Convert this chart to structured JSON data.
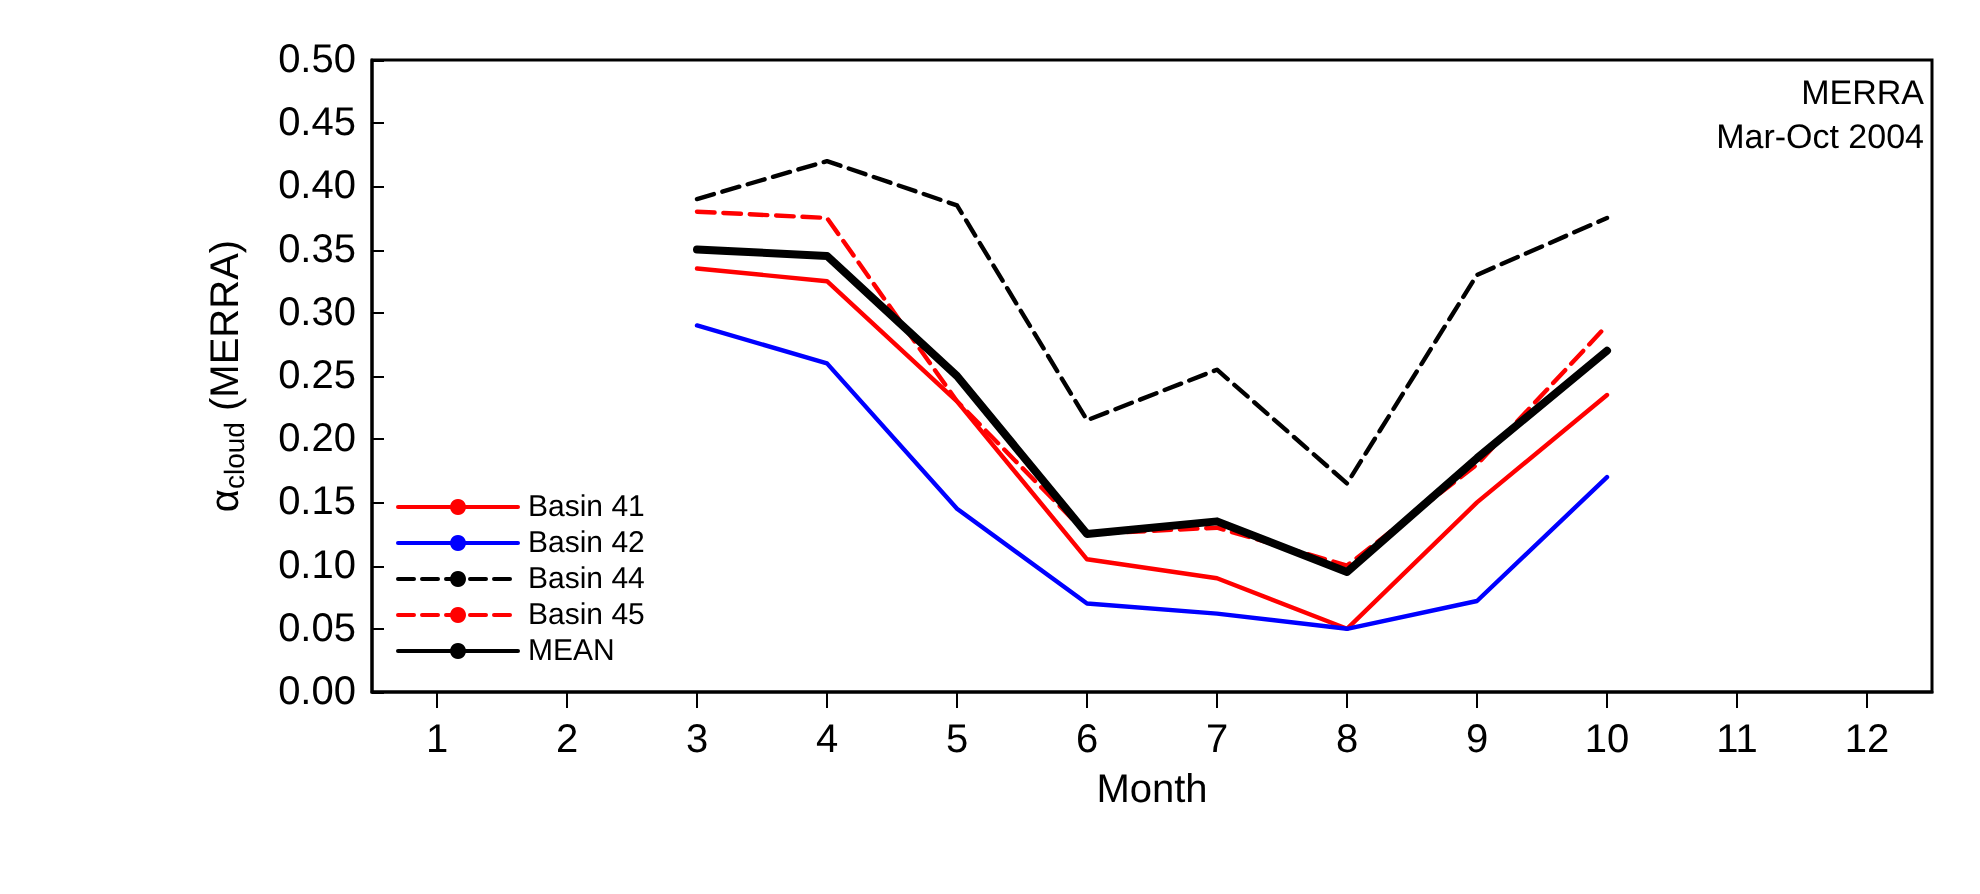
{
  "chart_data": {
    "type": "line",
    "xlabel": "Month",
    "ylabel": "α$_{cloud}$ (MERRA)",
    "annotations": [
      "MERRA",
      "Mar-Oct 2004"
    ],
    "x": [
      3,
      4,
      5,
      6,
      7,
      8,
      9,
      10
    ],
    "xlim": [
      0.5,
      12.5
    ],
    "xticks": [
      1,
      2,
      3,
      4,
      5,
      6,
      7,
      8,
      9,
      10,
      11,
      12
    ],
    "ylim": [
      0,
      0.5
    ],
    "yticks": [
      {
        "value": 0,
        "label": "0.00"
      },
      {
        "value": 0.05,
        "label": "0.05"
      },
      {
        "value": 0.1,
        "label": "0.10"
      },
      {
        "value": 0.15,
        "label": "0.15"
      },
      {
        "value": 0.2,
        "label": "0.20"
      },
      {
        "value": 0.25,
        "label": "0.25"
      },
      {
        "value": 0.3,
        "label": "0.30"
      },
      {
        "value": 0.35,
        "label": "0.35"
      },
      {
        "value": 0.4,
        "label": "0.40"
      },
      {
        "value": 0.45,
        "label": "0.45"
      },
      {
        "value": 0.5,
        "label": "0.50"
      }
    ],
    "grid": false,
    "legend": "bottom left",
    "marker": "none",
    "series": [
      {
        "name": "Basin 41",
        "color": "#ff0000",
        "line_style": "solid",
        "values": [
          0.335,
          0.325,
          0.23,
          0.105,
          0.09,
          0.05,
          0.15,
          0.235
        ]
      },
      {
        "name": "Basin 42",
        "color": "#0000ff",
        "line_style": "solid",
        "values": [
          0.29,
          0.26,
          0.145,
          0.07,
          0.062,
          0.05,
          0.072,
          0.17
        ]
      },
      {
        "name": "Basin 44",
        "color": "#000000",
        "line_style": "dashed",
        "values": [
          0.39,
          0.42,
          0.385,
          0.215,
          0.255,
          0.165,
          0.33,
          0.375
        ]
      },
      {
        "name": "Basin 45",
        "color": "#ff0000",
        "line_style": "dashed",
        "values": [
          0.38,
          0.375,
          0.23,
          0.125,
          0.13,
          0.1,
          0.18,
          0.29
        ]
      },
      {
        "name": "MEAN",
        "color": "#000000",
        "line_style": "solid",
        "values": [
          0.35,
          0.345,
          0.25,
          0.125,
          0.135,
          0.095,
          0.185,
          0.27
        ]
      }
    ]
  }
}
